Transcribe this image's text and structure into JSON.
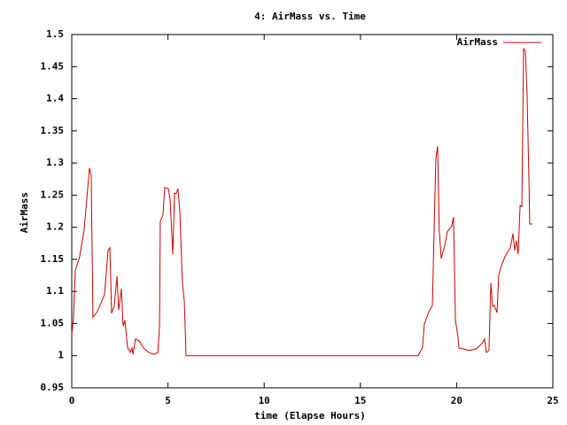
{
  "chart_data": {
    "type": "line",
    "title": "4: AirMass vs. Time",
    "xlabel": "time (Elapse Hours)",
    "ylabel": "AirMass",
    "x": [
      0,
      0.09,
      0.18,
      0.41,
      0.64,
      0.92,
      1.01,
      1.1,
      1.34,
      1.7,
      1.89,
      1.98,
      2.07,
      2.21,
      2.35,
      2.44,
      2.58,
      2.67,
      2.76,
      2.9,
      3.04,
      3.13,
      3.18,
      3.31,
      3.5,
      3.73,
      4.0,
      4.28,
      4.47,
      4.56,
      4.6,
      4.74,
      4.83,
      5.02,
      5.11,
      5.25,
      5.34,
      5.43,
      5.52,
      5.62,
      5.75,
      5.85,
      5.94,
      18.0,
      18.09,
      18.23,
      18.32,
      18.55,
      18.74,
      18.83,
      18.92,
      19.01,
      19.1,
      19.2,
      19.38,
      19.52,
      19.75,
      19.84,
      19.94,
      20.07,
      20.12,
      20.3,
      20.67,
      21.04,
      21.32,
      21.45,
      21.55,
      21.68,
      21.78,
      21.87,
      21.96,
      22.1,
      22.19,
      22.33,
      22.51,
      22.65,
      22.79,
      22.93,
      23.02,
      23.11,
      23.2,
      23.3,
      23.39,
      23.48,
      23.57,
      23.66,
      23.76,
      23.8,
      23.94
    ],
    "series": [
      {
        "name": "AirMass",
        "color": "#cc0000",
        "values": [
          1.033,
          1.058,
          1.132,
          1.154,
          1.195,
          1.292,
          1.281,
          1.06,
          1.069,
          1.095,
          1.164,
          1.168,
          1.066,
          1.078,
          1.124,
          1.071,
          1.104,
          1.046,
          1.055,
          1.013,
          1.005,
          1.012,
          1.002,
          1.026,
          1.023,
          1.012,
          1.005,
          1.002,
          1.005,
          1.044,
          1.209,
          1.219,
          1.262,
          1.26,
          1.244,
          1.158,
          1.253,
          1.252,
          1.26,
          1.223,
          1.113,
          1.085,
          1.0,
          1.0,
          1.005,
          1.013,
          1.049,
          1.068,
          1.078,
          1.195,
          1.306,
          1.326,
          1.195,
          1.151,
          1.171,
          1.193,
          1.202,
          1.216,
          1.055,
          1.03,
          1.012,
          1.011,
          1.008,
          1.011,
          1.019,
          1.026,
          1.005,
          1.008,
          1.113,
          1.077,
          1.078,
          1.067,
          1.126,
          1.14,
          1.154,
          1.161,
          1.168,
          1.19,
          1.164,
          1.179,
          1.158,
          1.234,
          1.232,
          1.478,
          1.474,
          1.409,
          1.271,
          1.205,
          1.205
        ]
      }
    ],
    "xlim": [
      0,
      25
    ],
    "ylim": [
      0.95,
      1.5
    ],
    "xticks": [
      0,
      5,
      10,
      15,
      20,
      25
    ],
    "yticks": [
      0.95,
      1,
      1.05,
      1.1,
      1.15,
      1.2,
      1.25,
      1.3,
      1.35,
      1.4,
      1.45,
      1.5
    ],
    "grid": false,
    "legend": "top-right"
  }
}
